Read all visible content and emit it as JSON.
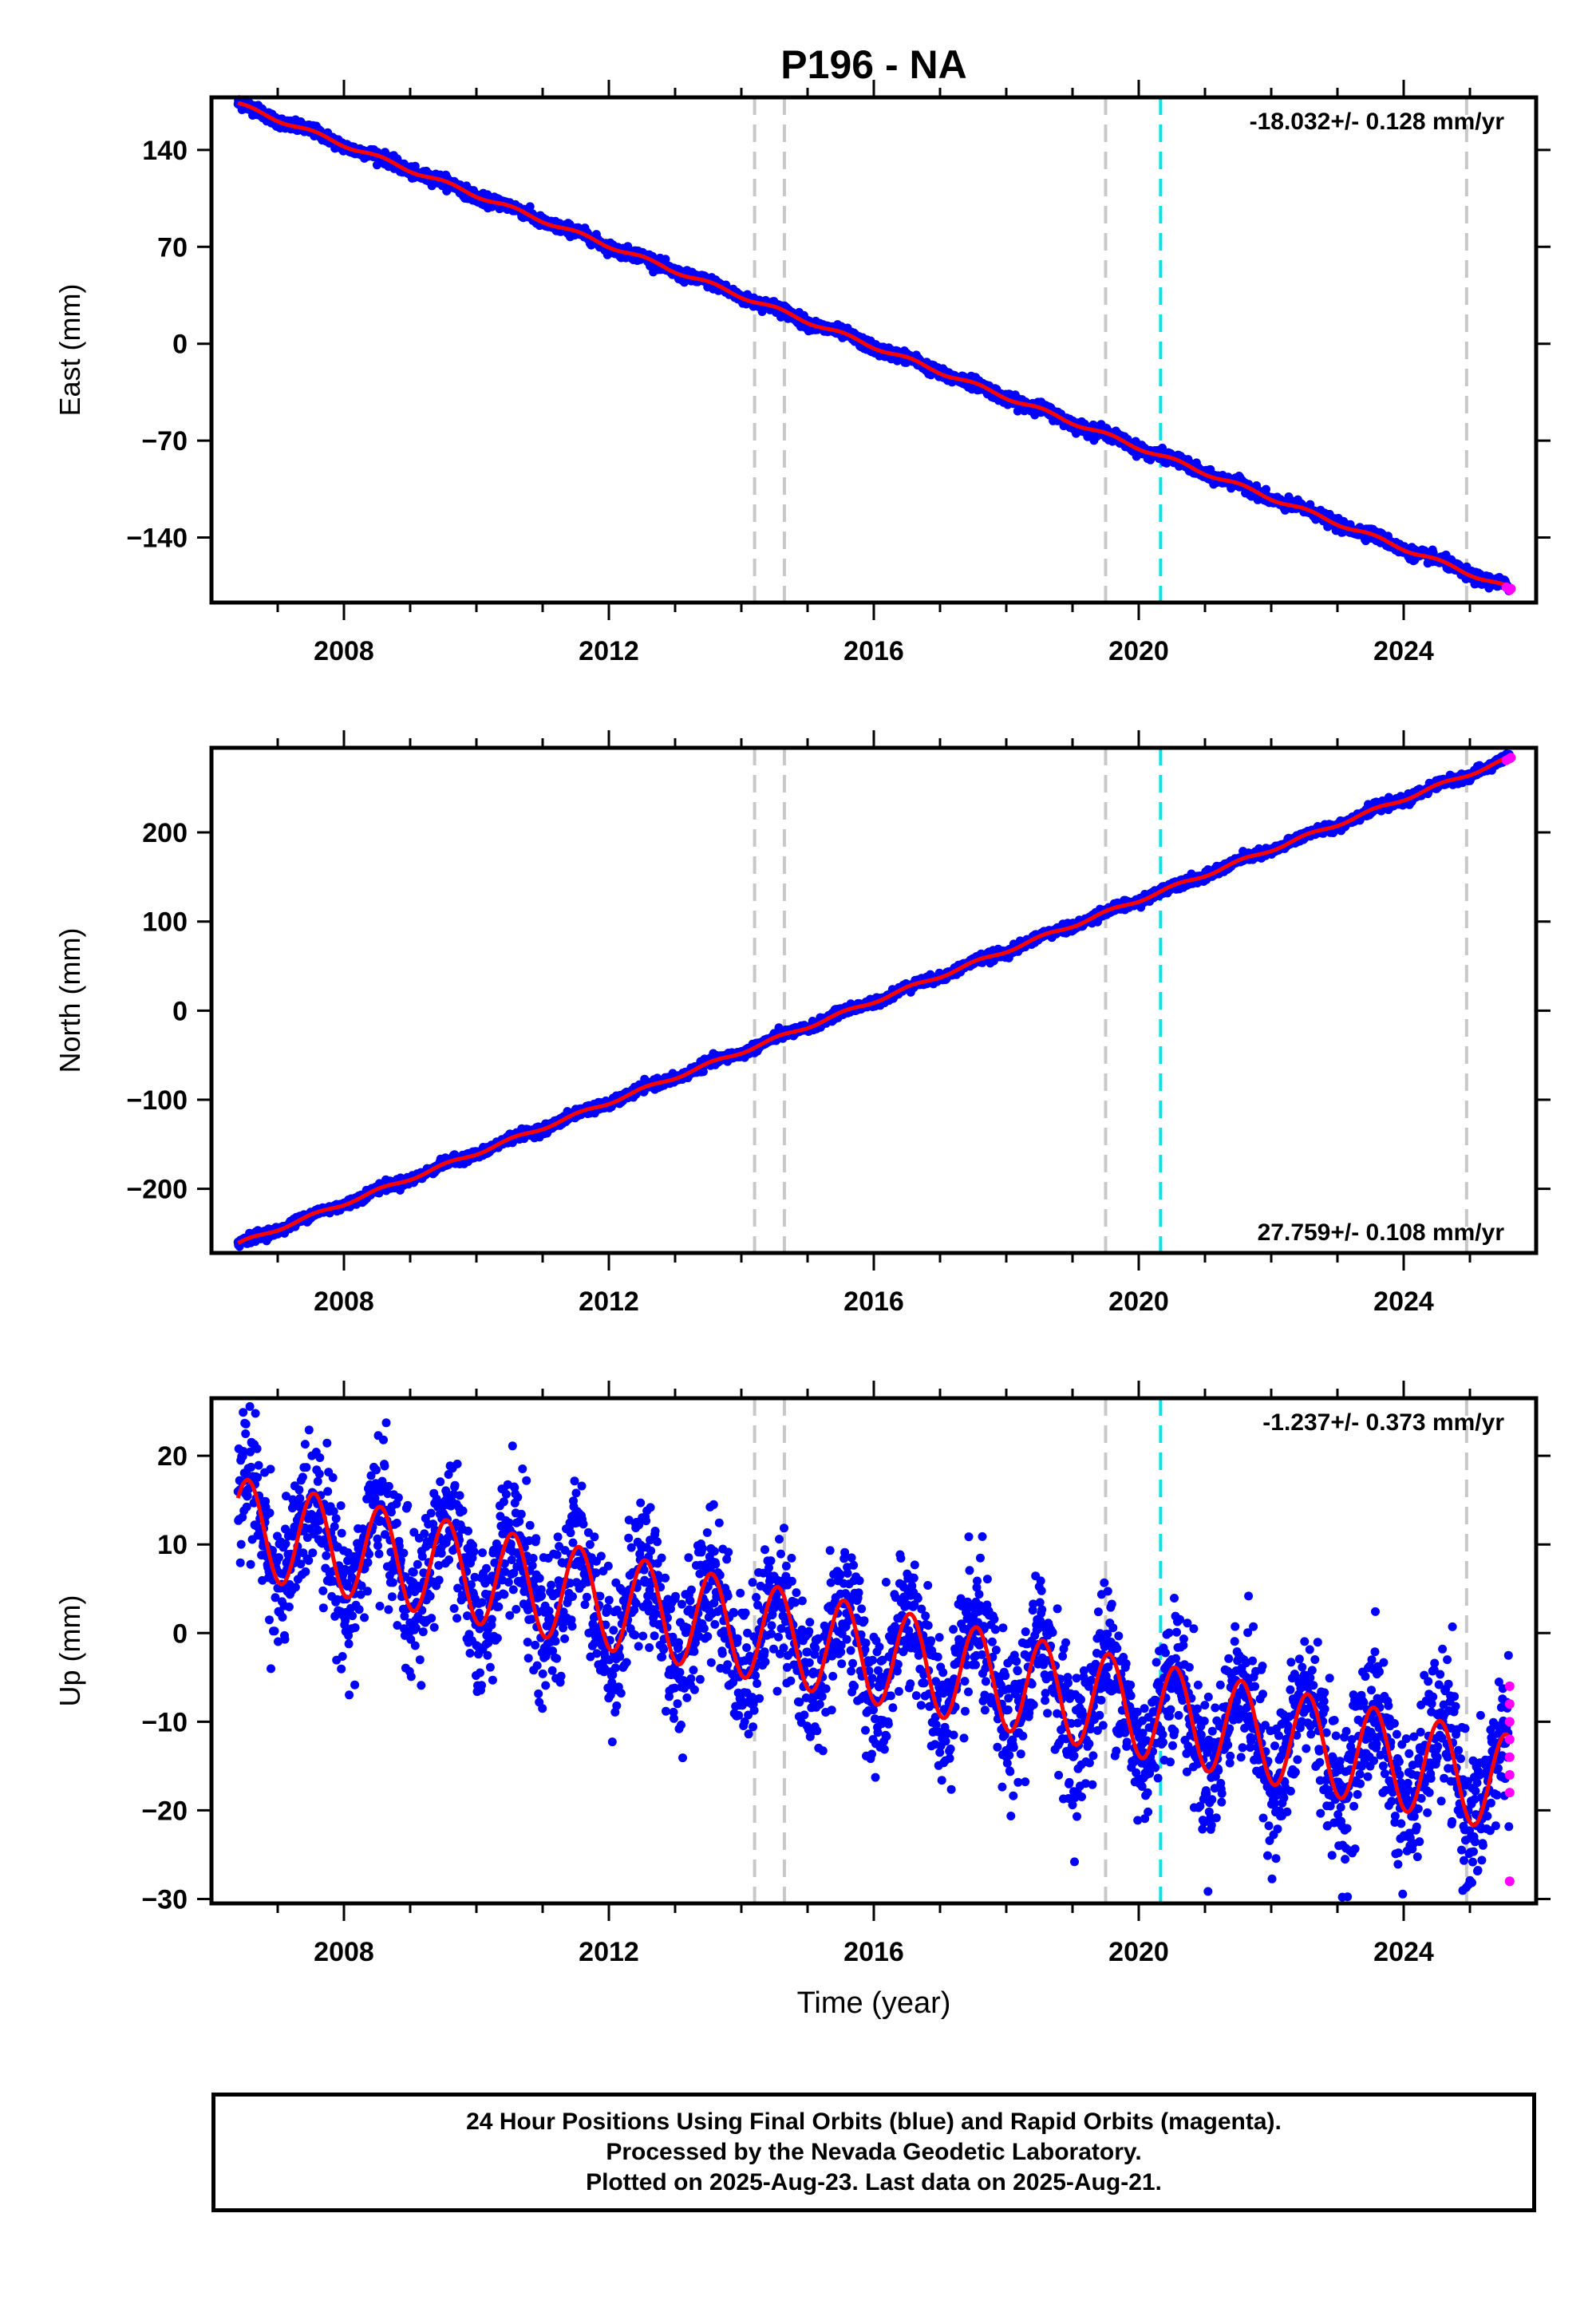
{
  "title": "P196 - NA",
  "colors": {
    "final_orbits": "#0000ff",
    "rapid_orbits": "#ff00ff",
    "model": "#ff0000",
    "event_gray": "#c8c8c8",
    "event_cyan": "#00e5e5"
  },
  "chart_data": [
    {
      "type": "scatter",
      "panel": "east",
      "ylabel": "East (mm)",
      "xlim": [
        2006.0,
        2026.0
      ],
      "ylim": [
        -187,
        178
      ],
      "yticks": [
        140,
        70,
        0,
        -70,
        -140
      ],
      "xticks": [
        2008,
        2012,
        2016,
        2020,
        2024
      ],
      "rate_label": "-18.032+/- 0.128 mm/yr",
      "rate_position": "top-right",
      "trend": {
        "start": [
          2006.4,
          173
        ],
        "end": [
          2025.6,
          -177
        ],
        "rate_mm_per_yr": -18.032,
        "seasonal_amplitude": 1.5,
        "scatter": 2.0
      },
      "vertical_lines": [
        {
          "x": 2014.2,
          "color": "gray"
        },
        {
          "x": 2014.65,
          "color": "gray"
        },
        {
          "x": 2019.5,
          "color": "gray"
        },
        {
          "x": 2020.33,
          "color": "cyan"
        },
        {
          "x": 2024.95,
          "color": "gray"
        }
      ],
      "rapid_points": [
        [
          2025.55,
          -176
        ],
        [
          2025.6,
          -178
        ],
        [
          2025.62,
          -177
        ]
      ]
    },
    {
      "type": "scatter",
      "panel": "north",
      "ylabel": "North (mm)",
      "xlim": [
        2006.0,
        2026.0
      ],
      "ylim": [
        -272,
        295
      ],
      "yticks": [
        200,
        100,
        0,
        -100,
        -200
      ],
      "xticks": [
        2008,
        2012,
        2016,
        2020,
        2024
      ],
      "rate_label": "27.759+/- 0.108 mm/yr",
      "rate_position": "bottom-right",
      "trend": {
        "start": [
          2006.4,
          -262
        ],
        "end": [
          2025.6,
          283
        ],
        "rate_mm_per_yr": 27.759,
        "seasonal_amplitude": 2.0,
        "scatter": 2.5
      },
      "vertical_lines": [
        {
          "x": 2014.2,
          "color": "gray"
        },
        {
          "x": 2014.65,
          "color": "gray"
        },
        {
          "x": 2019.5,
          "color": "gray"
        },
        {
          "x": 2020.33,
          "color": "cyan"
        },
        {
          "x": 2024.95,
          "color": "gray"
        }
      ],
      "rapid_points": [
        [
          2025.55,
          281
        ],
        [
          2025.6,
          283
        ],
        [
          2025.62,
          284
        ]
      ]
    },
    {
      "type": "scatter",
      "panel": "up",
      "ylabel": "Up (mm)",
      "xlabel": "Time (year)",
      "xlim": [
        2006.0,
        2026.0
      ],
      "ylim": [
        -30.5,
        26.5
      ],
      "yticks": [
        20,
        10,
        0,
        -10,
        -20,
        -30
      ],
      "xticks": [
        2008,
        2012,
        2016,
        2020,
        2024
      ],
      "rate_label": "-1.237+/- 0.373 mm/yr",
      "rate_position": "top-right",
      "trend": {
        "start": [
          2006.4,
          12
        ],
        "end": [
          2025.6,
          -17
        ],
        "rate_mm_per_yr": -1.237,
        "seasonal_amplitude": 5.5,
        "scatter": 4.0
      },
      "vertical_lines": [
        {
          "x": 2014.2,
          "color": "gray"
        },
        {
          "x": 2014.65,
          "color": "gray"
        },
        {
          "x": 2019.5,
          "color": "gray"
        },
        {
          "x": 2020.33,
          "color": "cyan"
        },
        {
          "x": 2024.95,
          "color": "gray"
        }
      ],
      "rapid_points": [
        [
          2025.6,
          -6
        ],
        [
          2025.6,
          -8
        ],
        [
          2025.6,
          -10
        ],
        [
          2025.6,
          -12
        ],
        [
          2025.6,
          -14
        ],
        [
          2025.6,
          -16
        ],
        [
          2025.6,
          -18
        ],
        [
          2025.6,
          -28
        ]
      ]
    }
  ],
  "footer": {
    "line1": "24 Hour Positions Using Final Orbits (blue) and Rapid Orbits (magenta).",
    "line2": "Processed by the Nevada Geodetic Laboratory.",
    "line3": "Plotted on 2025-Aug-23. Last data on 2025-Aug-21."
  }
}
